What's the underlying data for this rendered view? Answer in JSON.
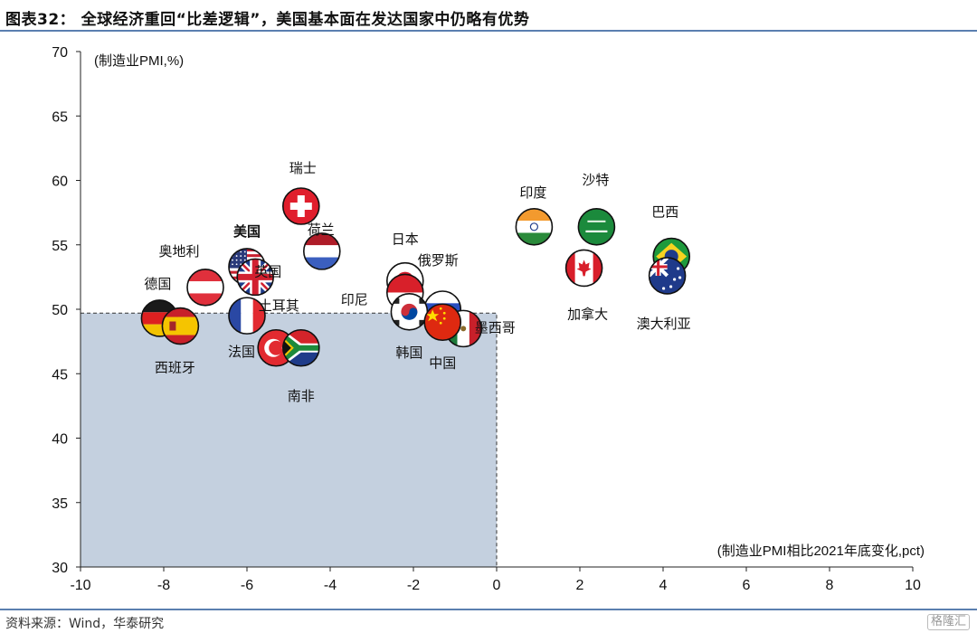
{
  "title": "图表32：  全球经济重回“比差逻辑”，美国基本面在发达国家中仍略有优势",
  "source": "资料来源：Wind，华泰研究",
  "watermark": "格隆汇",
  "colors": {
    "box_fill": "#c4d0df",
    "rule": "#5b7fb0",
    "highlight": "#c00000"
  },
  "chart_data": {
    "type": "scatter",
    "title": "",
    "y_unit_label": "(制造业PMI,%)",
    "x_unit_label": "(制造业PMI相比2021年底变化,pct)",
    "xlim": [
      -10,
      10
    ],
    "ylim": [
      30,
      70
    ],
    "x_ticks": [
      -10,
      -8,
      -6,
      -4,
      -2,
      0,
      2,
      4,
      6,
      8,
      10
    ],
    "y_ticks": [
      30,
      35,
      40,
      45,
      50,
      55,
      60,
      65,
      70
    ],
    "shaded_region": {
      "x": [
        -10,
        0
      ],
      "y": [
        30,
        49.7
      ]
    },
    "points": [
      {
        "label": "瑞士",
        "x": -4.7,
        "y": 58.0,
        "flag": "switzerland"
      },
      {
        "label": "荷兰",
        "x": -4.2,
        "y": 54.5,
        "flag": "netherlands"
      },
      {
        "label": "美国",
        "x": -6.0,
        "y": 53.3,
        "flag": "usa",
        "highlight": true
      },
      {
        "label": "英国",
        "x": -5.8,
        "y": 52.5,
        "flag": "uk"
      },
      {
        "label": "奥地利",
        "x": -7.0,
        "y": 51.7,
        "flag": "austria"
      },
      {
        "label": "德国",
        "x": -8.1,
        "y": 49.3,
        "flag": "germany"
      },
      {
        "label": "西班牙",
        "x": -7.6,
        "y": 48.7,
        "flag": "spain"
      },
      {
        "label": "土耳其",
        "x": -5.3,
        "y": 47.0,
        "flag": "turkey"
      },
      {
        "label": "法国",
        "x": -6.0,
        "y": 49.5,
        "flag": "france"
      },
      {
        "label": "南非",
        "x": -4.7,
        "y": 47.0,
        "flag": "southafrica"
      },
      {
        "label": "日本",
        "x": -2.2,
        "y": 52.2,
        "flag": "japan"
      },
      {
        "label": "印尼",
        "x": -2.2,
        "y": 51.3,
        "flag": "indonesia"
      },
      {
        "label": "俄罗斯",
        "x": -1.3,
        "y": 50.0,
        "flag": "russia"
      },
      {
        "label": "韩国",
        "x": -2.1,
        "y": 49.8,
        "flag": "southkorea"
      },
      {
        "label": "墨西哥",
        "x": -0.8,
        "y": 48.5,
        "flag": "mexico"
      },
      {
        "label": "中国",
        "x": -1.3,
        "y": 49.0,
        "flag": "china"
      },
      {
        "label": "印度",
        "x": 0.9,
        "y": 56.4,
        "flag": "india"
      },
      {
        "label": "沙特",
        "x": 2.4,
        "y": 56.4,
        "flag": "saudi"
      },
      {
        "label": "加拿大",
        "x": 2.1,
        "y": 53.2,
        "flag": "canada"
      },
      {
        "label": "巴西",
        "x": 4.2,
        "y": 54.1,
        "flag": "brazil"
      },
      {
        "label": "澳大利亚",
        "x": 4.1,
        "y": 52.6,
        "flag": "australia"
      }
    ]
  }
}
